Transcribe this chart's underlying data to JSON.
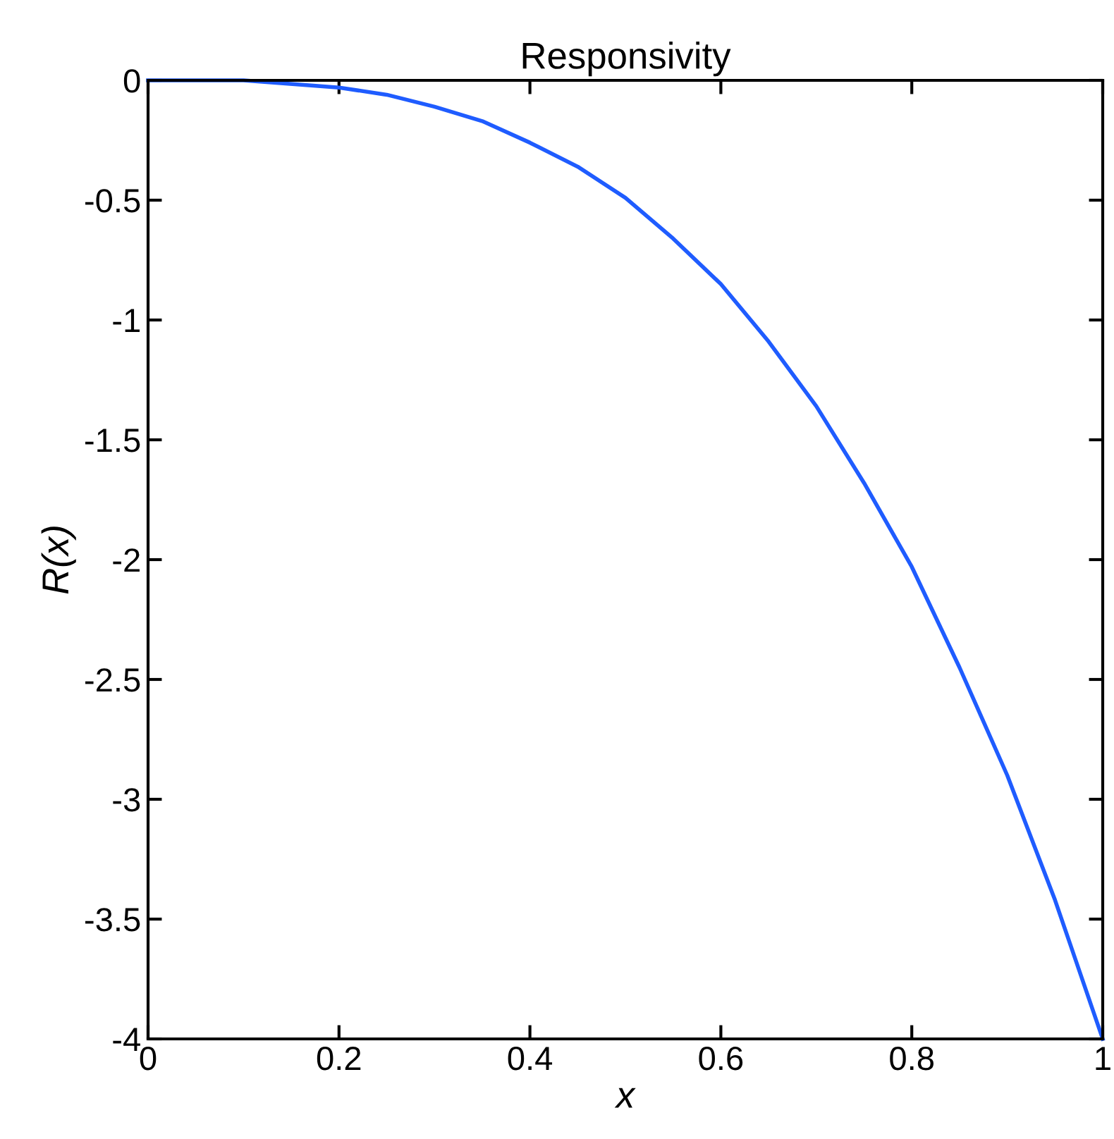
{
  "chart_data": {
    "type": "line",
    "title": "Responsivity",
    "xlabel": "x",
    "ylabel": "R(x)",
    "x": [
      0,
      0.1,
      0.2,
      0.25,
      0.3,
      0.35,
      0.4,
      0.45,
      0.5,
      0.55,
      0.6,
      0.65,
      0.7,
      0.75,
      0.8,
      0.85,
      0.9,
      0.95,
      1
    ],
    "series": [
      {
        "color": "#1f5cff",
        "values": [
          0,
          0,
          -0.03,
          -0.06,
          -0.11,
          -0.17,
          -0.26,
          -0.36,
          -0.49,
          -0.66,
          -0.85,
          -1.09,
          -1.36,
          -1.68,
          -2.03,
          -2.45,
          -2.9,
          -3.42,
          -4
        ]
      }
    ],
    "xlim": [
      0,
      1
    ],
    "ylim": [
      -4,
      0
    ],
    "xticks": [
      0,
      0.2,
      0.4,
      0.6,
      0.8,
      1
    ],
    "yticks": [
      0,
      -0.5,
      -1,
      -1.5,
      -2,
      -2.5,
      -3,
      -3.5,
      -4
    ],
    "grid": false,
    "legend": false,
    "marker": "none",
    "line_style": "solid"
  }
}
